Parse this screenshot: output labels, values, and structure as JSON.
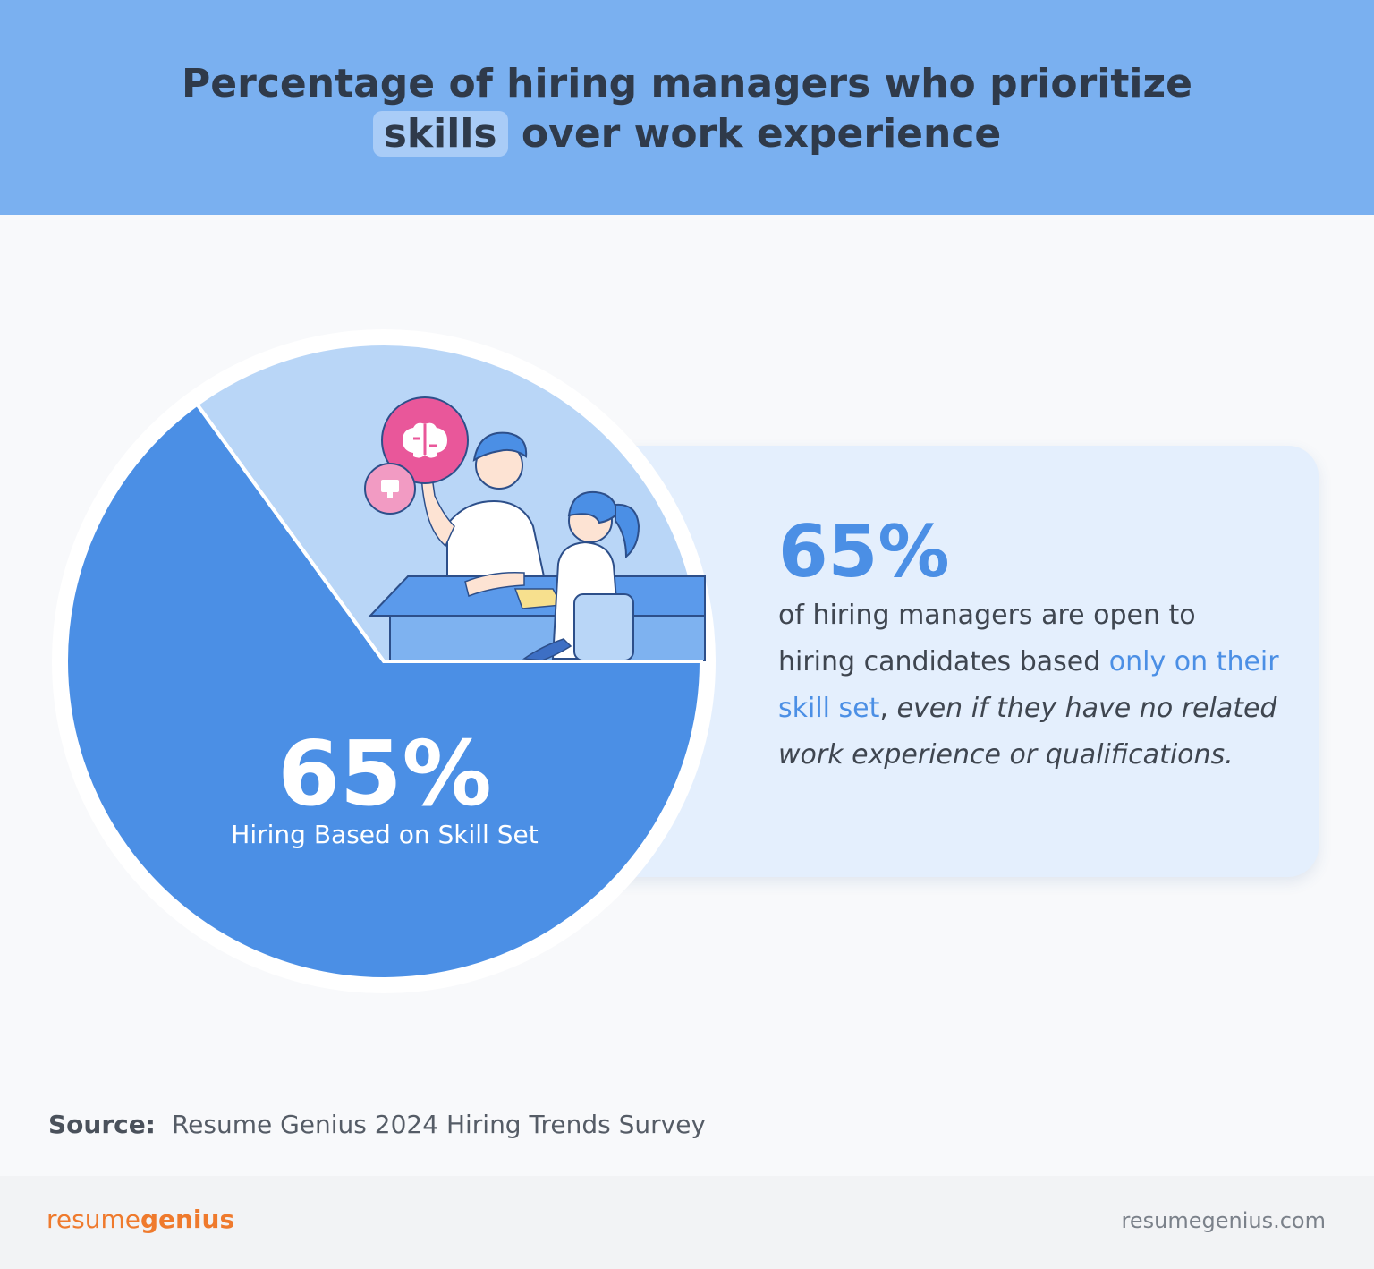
{
  "header": {
    "title_line1": "Percentage of hiring managers who prioritize",
    "title_highlight": "skills",
    "title_line2_rest": " over work experience"
  },
  "card": {
    "stat": "65%",
    "text_plain": "of hiring managers are open to hiring candidates based ",
    "text_accent": "only on their skill set",
    "text_comma": ", ",
    "text_italic": "even if they have no related work experience or qualifications."
  },
  "pie": {
    "stat": "65%",
    "label": "Hiring Based on Skill Set"
  },
  "source": {
    "label": "Source:",
    "text": "Resume Genius 2024 Hiring Trends Survey"
  },
  "footer": {
    "logo_resume": "resume",
    "logo_genius": "genius",
    "site": "resumegenius.com"
  },
  "colors": {
    "primary_slice": "#4b8fe5",
    "rest_slice": "#b9d6f7",
    "header_bg": "#7ab0f0",
    "card_bg": "#e4effd",
    "accent_text": "#4b8fe5",
    "logo_orange": "#ef7a2d",
    "brain_icon_pink": "#e9579a"
  },
  "chart_data": {
    "type": "pie",
    "title": "Percentage of hiring managers who prioritize skills over work experience",
    "categories": [
      "Hiring Based on Skill Set",
      ""
    ],
    "values": [
      65,
      35
    ],
    "data_labels": [
      "65%",
      ""
    ]
  }
}
